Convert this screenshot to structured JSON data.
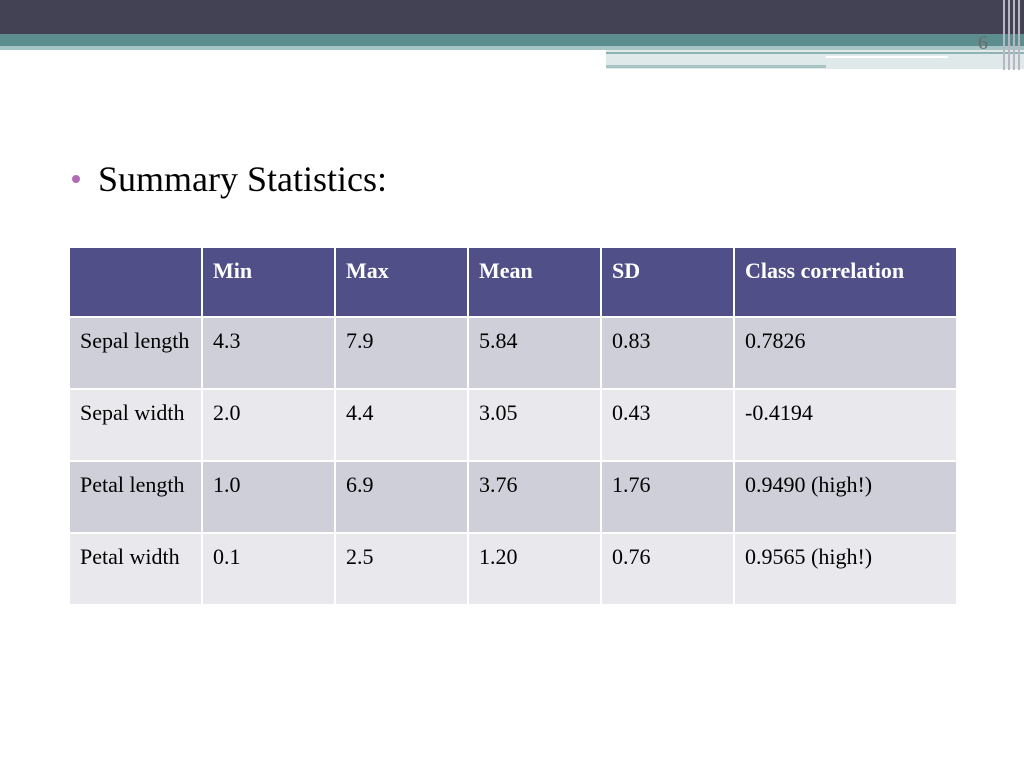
{
  "slide": {
    "number": "6",
    "bullet": "Summary Statistics:"
  },
  "table": {
    "headers": [
      "",
      "Min",
      "Max",
      "Mean",
      "SD",
      "Class correlation"
    ],
    "rows": [
      [
        "Sepal length",
        "4.3",
        "7.9",
        "5.84",
        "0.83",
        "0.7826"
      ],
      [
        "Sepal width",
        "2.0",
        "4.4",
        "3.05",
        "0.43",
        "-0.4194"
      ],
      [
        "Petal length",
        "1.0",
        "6.9",
        "3.76",
        "1.76",
        "0.9490 (high!)"
      ],
      [
        "Petal width",
        "0.1",
        "2.5",
        "1.20",
        "0.76",
        "0.9565 (high!)"
      ]
    ]
  },
  "colors": {
    "header_fill": "#504f88",
    "row_odd": "#cfcfd9",
    "row_even": "#e8e8ed",
    "bullet": "#b06bb4",
    "top_bar": "#434154",
    "accent_band": "#5c8d8f"
  }
}
